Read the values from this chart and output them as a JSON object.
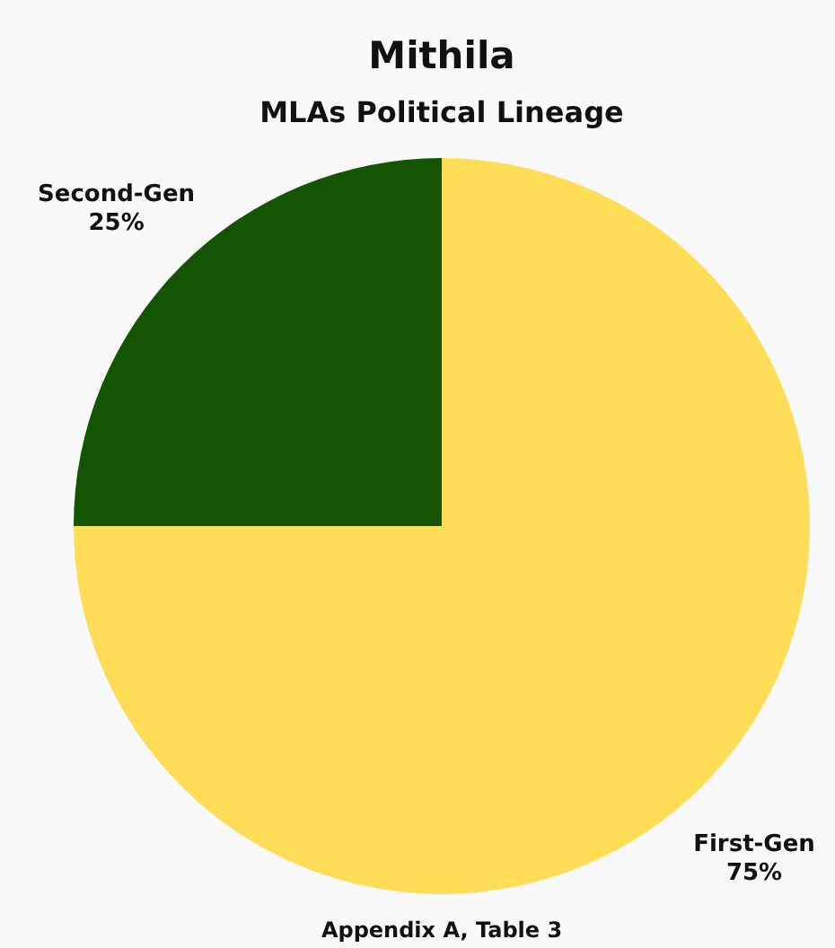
{
  "chart_data": {
    "type": "pie",
    "title": "Mithila",
    "subtitle": "MLAs Political Lineage",
    "categories": [
      "First-Gen",
      "Second-Gen"
    ],
    "values": [
      75,
      25
    ],
    "value_labels": [
      "75%",
      "25%"
    ],
    "colors": [
      "#ffdd57",
      "#135503"
    ],
    "annotations": [
      "Appendix A, Table 3"
    ]
  }
}
